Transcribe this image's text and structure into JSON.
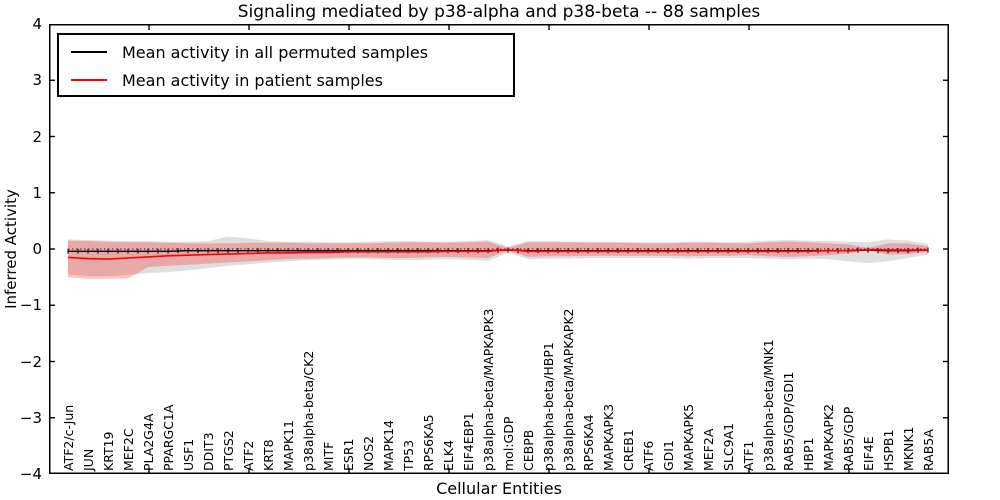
{
  "figure": {
    "title": "Signaling mediated by p38-alpha and p38-beta -- 88 samples",
    "xlabel": "Cellular Entities",
    "ylabel": "Inferred Activity"
  },
  "chart_data": {
    "type": "line",
    "title": "Signaling mediated by p38-alpha and p38-beta -- 88 samples",
    "xlabel": "Cellular Entities",
    "ylabel": "Inferred Activity",
    "ylim": [
      -4,
      4
    ],
    "yticks": [
      4,
      3,
      2,
      1,
      0,
      -1,
      -2,
      -3,
      -4
    ],
    "ytick_labels": [
      "4",
      "3",
      "2",
      "1",
      "0",
      "−1",
      "−2",
      "−3",
      "−4"
    ],
    "grid": false,
    "legend_position": "upper left",
    "categories": [
      "ATF2/c-Jun",
      "JUN",
      "KRT19",
      "MEF2C",
      "PLA2G4A",
      "PPARGC1A",
      "USF1",
      "DDIT3",
      "PTGS2",
      "ATF2",
      "KRT8",
      "MAPK11",
      "p38alpha-beta/CK2",
      "MITF",
      "ESR1",
      "NOS2",
      "MAPK14",
      "TP53",
      "RPS6KA5",
      "ELK4",
      "EIF4EBP1",
      "p38alpha-beta/MAPKAPK3",
      "mol:GDP",
      "CEBPB",
      "p38alpha-beta/HBP1",
      "p38alpha-beta/MAPKAPK2",
      "RPS6KA4",
      "MAPKAPK3",
      "CREB1",
      "ATF6",
      "GDI1",
      "MAPKAPK5",
      "MEF2A",
      "SLC9A1",
      "ATF1",
      "p38alpha-beta/MNK1",
      "RAB5/GDP/GDI1",
      "HBP1",
      "MAPKAPK2",
      "RAB5/GDP",
      "EIF4E",
      "HSPB1",
      "MKNK1",
      "RAB5A"
    ],
    "series": [
      {
        "name": "Mean activity in all permuted samples",
        "color": "#000000",
        "values": [
          -0.04,
          -0.04,
          -0.04,
          -0.04,
          -0.04,
          -0.04,
          -0.03,
          -0.03,
          -0.03,
          -0.03,
          -0.03,
          -0.03,
          -0.03,
          -0.03,
          -0.03,
          -0.03,
          -0.03,
          -0.03,
          -0.03,
          -0.03,
          -0.03,
          -0.03,
          -0.02,
          -0.03,
          -0.03,
          -0.03,
          -0.03,
          -0.03,
          -0.03,
          -0.03,
          -0.03,
          -0.03,
          -0.03,
          -0.03,
          -0.03,
          -0.03,
          -0.03,
          -0.03,
          -0.03,
          -0.03,
          -0.02,
          -0.03,
          -0.03,
          -0.02
        ]
      },
      {
        "name": "Mean activity in patient samples",
        "color": "#ff0000",
        "values": [
          -0.15,
          -0.17,
          -0.18,
          -0.16,
          -0.14,
          -0.12,
          -0.11,
          -0.1,
          -0.09,
          -0.08,
          -0.07,
          -0.07,
          -0.06,
          -0.06,
          -0.05,
          -0.05,
          -0.05,
          -0.05,
          -0.05,
          -0.04,
          -0.04,
          -0.04,
          -0.01,
          -0.04,
          -0.04,
          -0.04,
          -0.04,
          -0.04,
          -0.04,
          -0.04,
          -0.04,
          -0.04,
          -0.04,
          -0.04,
          -0.04,
          -0.04,
          -0.04,
          -0.04,
          -0.03,
          -0.03,
          -0.01,
          -0.02,
          -0.02,
          -0.02
        ]
      }
    ],
    "bands": [
      {
        "name": "permuted samples range",
        "color": "#aaaaaa",
        "opacity": 0.38,
        "hi": [
          0.17,
          0.16,
          0.15,
          0.14,
          0.14,
          0.13,
          0.13,
          0.14,
          0.22,
          0.19,
          0.14,
          0.13,
          0.13,
          0.12,
          0.12,
          0.13,
          0.14,
          0.14,
          0.13,
          0.13,
          0.14,
          0.16,
          0.05,
          0.14,
          0.14,
          0.13,
          0.13,
          0.13,
          0.12,
          0.12,
          0.12,
          0.13,
          0.13,
          0.12,
          0.13,
          0.15,
          0.16,
          0.15,
          0.14,
          0.13,
          0.12,
          0.17,
          0.15,
          0.09
        ],
        "lo": [
          -0.45,
          -0.48,
          -0.48,
          -0.46,
          -0.43,
          -0.41,
          -0.38,
          -0.34,
          -0.3,
          -0.27,
          -0.24,
          -0.22,
          -0.2,
          -0.19,
          -0.18,
          -0.18,
          -0.19,
          -0.2,
          -0.19,
          -0.18,
          -0.19,
          -0.21,
          -0.07,
          -0.18,
          -0.17,
          -0.17,
          -0.16,
          -0.16,
          -0.16,
          -0.16,
          -0.16,
          -0.17,
          -0.16,
          -0.16,
          -0.16,
          -0.17,
          -0.18,
          -0.17,
          -0.18,
          -0.22,
          -0.25,
          -0.22,
          -0.16,
          -0.1
        ]
      },
      {
        "name": "patient samples range",
        "color": "#ff2a2a",
        "opacity": 0.3,
        "hi": [
          0.15,
          0.14,
          0.13,
          0.12,
          0.12,
          0.11,
          0.1,
          0.1,
          0.1,
          0.11,
          0.11,
          0.11,
          0.1,
          0.1,
          0.1,
          0.1,
          0.11,
          0.12,
          0.12,
          0.11,
          0.12,
          0.13,
          0.02,
          0.12,
          0.12,
          0.12,
          0.11,
          0.11,
          0.11,
          0.1,
          0.1,
          0.11,
          0.11,
          0.1,
          0.1,
          0.12,
          0.13,
          0.12,
          0.1,
          0.08,
          0.02,
          0.1,
          0.1,
          0.05
        ],
        "lo": [
          -0.5,
          -0.53,
          -0.53,
          -0.52,
          -0.32,
          -0.3,
          -0.28,
          -0.26,
          -0.24,
          -0.22,
          -0.2,
          -0.18,
          -0.17,
          -0.16,
          -0.15,
          -0.15,
          -0.16,
          -0.16,
          -0.15,
          -0.14,
          -0.15,
          -0.16,
          -0.03,
          -0.14,
          -0.13,
          -0.13,
          -0.12,
          -0.12,
          -0.12,
          -0.12,
          -0.12,
          -0.13,
          -0.12,
          -0.12,
          -0.11,
          -0.13,
          -0.14,
          -0.13,
          -0.11,
          -0.08,
          -0.02,
          -0.1,
          -0.09,
          -0.05
        ]
      }
    ]
  }
}
